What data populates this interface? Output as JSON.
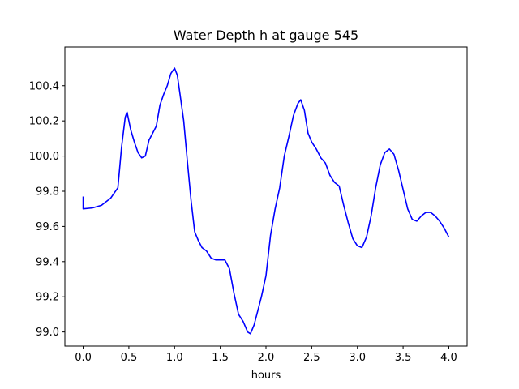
{
  "chart_data": {
    "type": "line",
    "title": "Water Depth h at gauge 545",
    "xlabel": "hours",
    "ylabel": "",
    "xlim": [
      -0.2,
      4.2
    ],
    "ylim": [
      98.92,
      100.62
    ],
    "xticks": [
      0.0,
      0.5,
      1.0,
      1.5,
      2.0,
      2.5,
      3.0,
      3.5,
      4.0
    ],
    "xtick_labels": [
      "0.0",
      "0.5",
      "1.0",
      "1.5",
      "2.0",
      "2.5",
      "3.0",
      "3.5",
      "4.0"
    ],
    "yticks": [
      99.0,
      99.2,
      99.4,
      99.6,
      99.8,
      100.0,
      100.2,
      100.4
    ],
    "ytick_labels": [
      "99.0",
      "99.2",
      "99.4",
      "99.6",
      "99.8",
      "100.0",
      "100.2",
      "100.4"
    ],
    "grid": false,
    "legend": "none",
    "series": [
      {
        "color": "#0000ff",
        "x": [
          0.0,
          0.0,
          0.1,
          0.2,
          0.3,
          0.38,
          0.42,
          0.46,
          0.48,
          0.52,
          0.56,
          0.6,
          0.64,
          0.68,
          0.72,
          0.76,
          0.8,
          0.84,
          0.88,
          0.92,
          0.96,
          1.0,
          1.03,
          1.06,
          1.1,
          1.14,
          1.18,
          1.22,
          1.26,
          1.3,
          1.35,
          1.4,
          1.45,
          1.5,
          1.55,
          1.6,
          1.65,
          1.7,
          1.75,
          1.8,
          1.83,
          1.87,
          1.9,
          1.95,
          2.0,
          2.05,
          2.1,
          2.15,
          2.2,
          2.25,
          2.3,
          2.35,
          2.38,
          2.42,
          2.46,
          2.5,
          2.55,
          2.6,
          2.65,
          2.7,
          2.75,
          2.8,
          2.85,
          2.9,
          2.95,
          3.0,
          3.05,
          3.1,
          3.15,
          3.2,
          3.25,
          3.3,
          3.35,
          3.4,
          3.45,
          3.5,
          3.55,
          3.6,
          3.65,
          3.7,
          3.75,
          3.8,
          3.85,
          3.9,
          3.95,
          4.0
        ],
        "y": [
          99.77,
          99.7,
          99.705,
          99.72,
          99.76,
          99.82,
          100.05,
          100.22,
          100.25,
          100.15,
          100.08,
          100.02,
          99.99,
          100.0,
          100.09,
          100.13,
          100.17,
          100.29,
          100.35,
          100.4,
          100.47,
          100.5,
          100.46,
          100.35,
          100.2,
          99.97,
          99.75,
          99.57,
          99.52,
          99.48,
          99.46,
          99.42,
          99.41,
          99.41,
          99.41,
          99.36,
          99.22,
          99.1,
          99.06,
          99.0,
          98.99,
          99.04,
          99.1,
          99.2,
          99.32,
          99.55,
          99.7,
          99.82,
          100.0,
          100.11,
          100.23,
          100.3,
          100.32,
          100.26,
          100.13,
          100.08,
          100.04,
          99.99,
          99.96,
          99.89,
          99.85,
          99.83,
          99.72,
          99.62,
          99.53,
          99.49,
          99.48,
          99.54,
          99.66,
          99.82,
          99.95,
          100.02,
          100.04,
          100.01,
          99.92,
          99.81,
          99.7,
          99.64,
          99.63,
          99.66,
          99.68,
          99.68,
          99.66,
          99.63,
          99.59,
          99.54
        ]
      }
    ]
  }
}
